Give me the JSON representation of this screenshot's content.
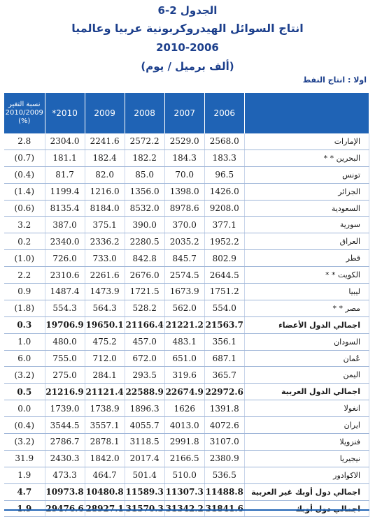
{
  "header": {
    "table_number": "الجدول 2-6",
    "title": "انتاج السوائل الهيدروكربونية عربيا وعالميا",
    "years": "2010-2006",
    "unit": "(ألف برميل / يوم)"
  },
  "section": "اولا : انتاج النفط",
  "columns": {
    "change": "نسبة التغير 2010/2009 (%)",
    "y2010": "*2010",
    "y2009": "2009",
    "y2008": "2008",
    "y2007": "2007",
    "y2006": "2006"
  },
  "rows": [
    {
      "country": "الإمارات",
      "y2006": "2568.0",
      "y2007": "2529.0",
      "y2008": "2572.2",
      "y2009": "2241.6",
      "y2010": "2304.0",
      "change": "2.8"
    },
    {
      "country": "البحرين * *",
      "y2006": "183.3",
      "y2007": "184.3",
      "y2008": "182.2",
      "y2009": "182.4",
      "y2010": "181.1",
      "change": "(0.7)"
    },
    {
      "country": "تونس",
      "y2006": "96.5",
      "y2007": "70.0",
      "y2008": "85.0",
      "y2009": "82.0",
      "y2010": "81.7",
      "change": "(0.4)"
    },
    {
      "country": "الجزائر",
      "y2006": "1426.0",
      "y2007": "1398.0",
      "y2008": "1356.0",
      "y2009": "1216.0",
      "y2010": "1199.4",
      "change": "(1.4)"
    },
    {
      "country": "السعودية",
      "y2006": "9208.0",
      "y2007": "8978.6",
      "y2008": "8532.0",
      "y2009": "8184.0",
      "y2010": "8135.4",
      "change": "(0.6)"
    },
    {
      "country": "سورية",
      "y2006": "377.1",
      "y2007": "370.0",
      "y2008": "390.0",
      "y2009": "375.1",
      "y2010": "387.0",
      "change": "3.2"
    },
    {
      "country": "العراق",
      "y2006": "1952.2",
      "y2007": "2035.2",
      "y2008": "2280.5",
      "y2009": "2336.2",
      "y2010": "2340.0",
      "change": "0.2"
    },
    {
      "country": "قطر",
      "y2006": "802.9",
      "y2007": "845.7",
      "y2008": "842.8",
      "y2009": "733.0",
      "y2010": "726.0",
      "change": "(1.0)"
    },
    {
      "country": "الكويت * *",
      "y2006": "2644.5",
      "y2007": "2574.5",
      "y2008": "2676.0",
      "y2009": "2261.6",
      "y2010": "2310.6",
      "change": "2.2"
    },
    {
      "country": "ليبيا",
      "y2006": "1751.2",
      "y2007": "1673.9",
      "y2008": "1721.5",
      "y2009": "1473.9",
      "y2010": "1487.4",
      "change": "0.9"
    },
    {
      "country": "مصر * *",
      "y2006": "554.0",
      "y2007": "562.0",
      "y2008": "528.2",
      "y2009": "564.3",
      "y2010": "554.3",
      "change": "(1.8)"
    },
    {
      "country": "اجمالي الدول الأعضاء",
      "total": true,
      "y2006": "21563.7",
      "y2007": "21221.2",
      "y2008": "21166.4",
      "y2009": "19650.1",
      "y2010": "19706.9",
      "change": "0.3"
    },
    {
      "country": "السودان",
      "y2006": "356.1",
      "y2007": "483.1",
      "y2008": "457.0",
      "y2009": "475.2",
      "y2010": "480.0",
      "change": "1.0"
    },
    {
      "country": "عُمان",
      "y2006": "687.1",
      "y2007": "651.0",
      "y2008": "672.0",
      "y2009": "712.0",
      "y2010": "755.0",
      "change": "6.0"
    },
    {
      "country": "اليمن",
      "y2006": "365.7",
      "y2007": "319.6",
      "y2008": "293.5",
      "y2009": "284.1",
      "y2010": "275.0",
      "change": "(3.2)"
    },
    {
      "country": "اجمالي الدول العربية",
      "total": true,
      "y2006": "22972.6",
      "y2007": "22674.9",
      "y2008": "22588.9",
      "y2009": "21121.4",
      "y2010": "21216.9",
      "change": "0.5"
    },
    {
      "country": "انغولا",
      "y2006": "1391.8",
      "y2007": "1626",
      "y2008": "1896.3",
      "y2009": "1738.9",
      "y2010": "1739.0",
      "change": "0.0"
    },
    {
      "country": "ايران",
      "y2006": "4072.6",
      "y2007": "4013.0",
      "y2008": "4055.7",
      "y2009": "3557.1",
      "y2010": "3544.5",
      "change": "(0.4)"
    },
    {
      "country": "فنزويلا",
      "y2006": "3107.0",
      "y2007": "2991.8",
      "y2008": "3118.5",
      "y2009": "2878.1",
      "y2010": "2786.7",
      "change": "(3.2)"
    },
    {
      "country": "نيجيريا",
      "y2006": "2380.9",
      "y2007": "2166.5",
      "y2008": "2017.4",
      "y2009": "1842.0",
      "y2010": "2430.3",
      "change": "31.9"
    },
    {
      "country": "الاكوادور",
      "y2006": "536.5",
      "y2007": "510.0",
      "y2008": "501.4",
      "y2009": "464.7",
      "y2010": "473.3",
      "change": "1.9"
    },
    {
      "country": "اجمالي دول أوبك غير العربية",
      "total": true,
      "y2006": "11488.8",
      "y2007": "11307.3",
      "y2008": "11589.3",
      "y2009": "10480.8",
      "y2010": "10973.8",
      "change": "4.7"
    },
    {
      "country": "اجمالي دول أوبك",
      "total": true,
      "y2006": "31841.6",
      "y2007": "31342.2",
      "y2008": "31570.3",
      "y2009": "28927.1",
      "y2010": "29476.6",
      "change": "1.9"
    }
  ]
}
